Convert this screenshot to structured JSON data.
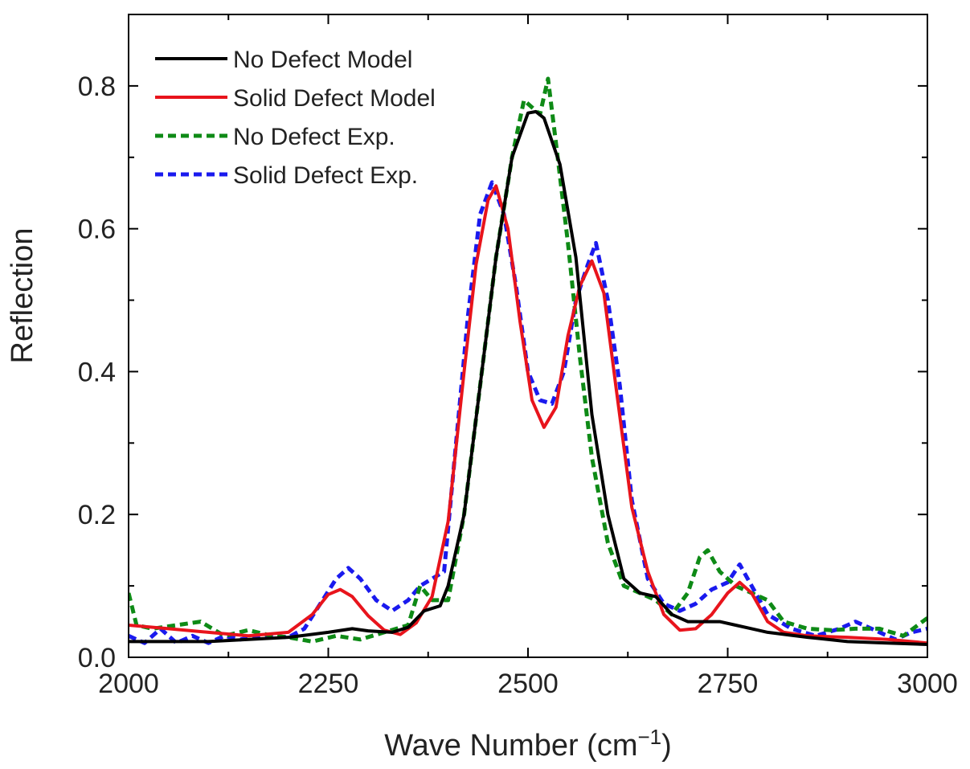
{
  "chart_data": {
    "type": "line",
    "title": "",
    "xlabel": "Wave Number (cm",
    "xlabel_sup": "−1",
    "xlabel_close": ")",
    "ylabel": "Reflection",
    "xlim": [
      2000,
      3000
    ],
    "ylim": [
      0,
      0.9
    ],
    "xticks": [
      2000,
      2250,
      2500,
      2750,
      3000
    ],
    "xtick_labels": [
      "2000",
      "2250",
      "2500",
      "2750",
      "3000"
    ],
    "yticks": [
      0.0,
      0.2,
      0.4,
      0.6,
      0.8
    ],
    "ytick_labels": [
      "0.0",
      "0.2",
      "0.4",
      "0.6",
      "0.8"
    ],
    "legend_position": "top-left",
    "grid": false,
    "series": [
      {
        "name": "No Defect Model",
        "color": "#000000",
        "style": "solid",
        "points": [
          [
            2000,
            0.022
          ],
          [
            2050,
            0.022
          ],
          [
            2100,
            0.022
          ],
          [
            2150,
            0.025
          ],
          [
            2200,
            0.028
          ],
          [
            2250,
            0.035
          ],
          [
            2280,
            0.04
          ],
          [
            2300,
            0.037
          ],
          [
            2330,
            0.035
          ],
          [
            2350,
            0.042
          ],
          [
            2370,
            0.065
          ],
          [
            2390,
            0.072
          ],
          [
            2400,
            0.1
          ],
          [
            2420,
            0.2
          ],
          [
            2440,
            0.38
          ],
          [
            2460,
            0.56
          ],
          [
            2480,
            0.7
          ],
          [
            2500,
            0.762
          ],
          [
            2510,
            0.764
          ],
          [
            2520,
            0.755
          ],
          [
            2540,
            0.69
          ],
          [
            2560,
            0.56
          ],
          [
            2580,
            0.34
          ],
          [
            2600,
            0.2
          ],
          [
            2620,
            0.11
          ],
          [
            2640,
            0.09
          ],
          [
            2660,
            0.085
          ],
          [
            2680,
            0.06
          ],
          [
            2700,
            0.05
          ],
          [
            2720,
            0.05
          ],
          [
            2740,
            0.05
          ],
          [
            2760,
            0.045
          ],
          [
            2780,
            0.04
          ],
          [
            2800,
            0.035
          ],
          [
            2850,
            0.028
          ],
          [
            2900,
            0.022
          ],
          [
            2950,
            0.02
          ],
          [
            3000,
            0.018
          ]
        ]
      },
      {
        "name": "Solid Defect Model",
        "color": "#e8141c",
        "style": "solid",
        "points": [
          [
            2000,
            0.045
          ],
          [
            2050,
            0.04
          ],
          [
            2100,
            0.035
          ],
          [
            2150,
            0.03
          ],
          [
            2200,
            0.035
          ],
          [
            2230,
            0.06
          ],
          [
            2250,
            0.088
          ],
          [
            2265,
            0.095
          ],
          [
            2280,
            0.085
          ],
          [
            2300,
            0.058
          ],
          [
            2320,
            0.038
          ],
          [
            2340,
            0.032
          ],
          [
            2360,
            0.048
          ],
          [
            2380,
            0.085
          ],
          [
            2400,
            0.19
          ],
          [
            2420,
            0.4
          ],
          [
            2435,
            0.55
          ],
          [
            2450,
            0.64
          ],
          [
            2460,
            0.66
          ],
          [
            2475,
            0.6
          ],
          [
            2490,
            0.47
          ],
          [
            2505,
            0.36
          ],
          [
            2520,
            0.322
          ],
          [
            2535,
            0.35
          ],
          [
            2550,
            0.45
          ],
          [
            2565,
            0.52
          ],
          [
            2580,
            0.555
          ],
          [
            2595,
            0.51
          ],
          [
            2610,
            0.38
          ],
          [
            2630,
            0.21
          ],
          [
            2650,
            0.12
          ],
          [
            2670,
            0.06
          ],
          [
            2690,
            0.038
          ],
          [
            2710,
            0.04
          ],
          [
            2730,
            0.06
          ],
          [
            2750,
            0.09
          ],
          [
            2765,
            0.105
          ],
          [
            2780,
            0.09
          ],
          [
            2800,
            0.05
          ],
          [
            2820,
            0.035
          ],
          [
            2850,
            0.03
          ],
          [
            2900,
            0.028
          ],
          [
            2950,
            0.025
          ],
          [
            3000,
            0.02
          ]
        ]
      },
      {
        "name": "No Defect Exp.",
        "color": "#0e8a16",
        "style": "dashed",
        "points": [
          [
            2000,
            0.09
          ],
          [
            2010,
            0.045
          ],
          [
            2030,
            0.04
          ],
          [
            2060,
            0.045
          ],
          [
            2090,
            0.05
          ],
          [
            2120,
            0.03
          ],
          [
            2150,
            0.038
          ],
          [
            2180,
            0.03
          ],
          [
            2200,
            0.028
          ],
          [
            2230,
            0.022
          ],
          [
            2260,
            0.03
          ],
          [
            2290,
            0.025
          ],
          [
            2320,
            0.035
          ],
          [
            2350,
            0.045
          ],
          [
            2365,
            0.1
          ],
          [
            2380,
            0.08
          ],
          [
            2400,
            0.08
          ],
          [
            2420,
            0.2
          ],
          [
            2440,
            0.38
          ],
          [
            2460,
            0.56
          ],
          [
            2480,
            0.7
          ],
          [
            2495,
            0.78
          ],
          [
            2505,
            0.77
          ],
          [
            2515,
            0.76
          ],
          [
            2525,
            0.81
          ],
          [
            2535,
            0.72
          ],
          [
            2550,
            0.58
          ],
          [
            2565,
            0.42
          ],
          [
            2580,
            0.28
          ],
          [
            2600,
            0.16
          ],
          [
            2620,
            0.1
          ],
          [
            2640,
            0.09
          ],
          [
            2660,
            0.08
          ],
          [
            2680,
            0.06
          ],
          [
            2700,
            0.09
          ],
          [
            2715,
            0.14
          ],
          [
            2725,
            0.15
          ],
          [
            2740,
            0.12
          ],
          [
            2760,
            0.1
          ],
          [
            2780,
            0.09
          ],
          [
            2800,
            0.08
          ],
          [
            2820,
            0.05
          ],
          [
            2850,
            0.04
          ],
          [
            2880,
            0.038
          ],
          [
            2910,
            0.04
          ],
          [
            2940,
            0.04
          ],
          [
            2970,
            0.03
          ],
          [
            3000,
            0.055
          ]
        ]
      },
      {
        "name": "Solid Defect Exp.",
        "color": "#1a1aee",
        "style": "dashed",
        "points": [
          [
            2000,
            0.03
          ],
          [
            2020,
            0.02
          ],
          [
            2040,
            0.04
          ],
          [
            2060,
            0.02
          ],
          [
            2080,
            0.03
          ],
          [
            2100,
            0.02
          ],
          [
            2120,
            0.03
          ],
          [
            2140,
            0.025
          ],
          [
            2160,
            0.03
          ],
          [
            2180,
            0.03
          ],
          [
            2200,
            0.028
          ],
          [
            2220,
            0.04
          ],
          [
            2240,
            0.075
          ],
          [
            2260,
            0.11
          ],
          [
            2275,
            0.125
          ],
          [
            2290,
            0.11
          ],
          [
            2310,
            0.08
          ],
          [
            2330,
            0.065
          ],
          [
            2350,
            0.08
          ],
          [
            2365,
            0.1
          ],
          [
            2380,
            0.11
          ],
          [
            2395,
            0.12
          ],
          [
            2410,
            0.3
          ],
          [
            2425,
            0.48
          ],
          [
            2440,
            0.62
          ],
          [
            2455,
            0.665
          ],
          [
            2470,
            0.62
          ],
          [
            2485,
            0.52
          ],
          [
            2500,
            0.4
          ],
          [
            2515,
            0.36
          ],
          [
            2530,
            0.355
          ],
          [
            2545,
            0.4
          ],
          [
            2560,
            0.5
          ],
          [
            2575,
            0.55
          ],
          [
            2585,
            0.58
          ],
          [
            2600,
            0.5
          ],
          [
            2615,
            0.38
          ],
          [
            2630,
            0.22
          ],
          [
            2650,
            0.11
          ],
          [
            2670,
            0.075
          ],
          [
            2690,
            0.065
          ],
          [
            2710,
            0.075
          ],
          [
            2730,
            0.095
          ],
          [
            2750,
            0.105
          ],
          [
            2765,
            0.13
          ],
          [
            2780,
            0.1
          ],
          [
            2800,
            0.06
          ],
          [
            2830,
            0.04
          ],
          [
            2860,
            0.03
          ],
          [
            2890,
            0.04
          ],
          [
            2910,
            0.05
          ],
          [
            2930,
            0.04
          ],
          [
            2960,
            0.025
          ],
          [
            2980,
            0.035
          ],
          [
            3000,
            0.04
          ]
        ]
      }
    ]
  }
}
